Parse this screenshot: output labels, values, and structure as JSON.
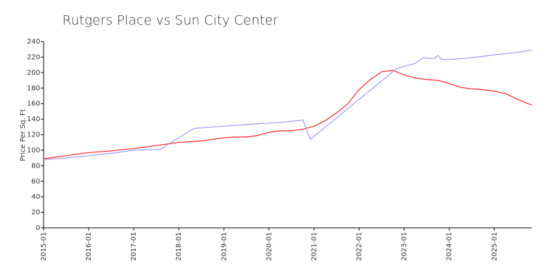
{
  "chart_data": {
    "type": "line",
    "title": "Rutgers Place vs Sun City Center",
    "ylabel": "Price Per Sq. Ft",
    "xlim": [
      "2015-01",
      "2025-11"
    ],
    "xticks": [
      "2015-01",
      "2016-01",
      "2017-01",
      "2018-01",
      "2019-01",
      "2020-01",
      "2021-01",
      "2022-01",
      "2023-01",
      "2024-01",
      "2025-01"
    ],
    "ylim": [
      0,
      240
    ],
    "yticks": [
      0,
      20,
      40,
      60,
      80,
      100,
      120,
      140,
      160,
      180,
      200,
      220,
      240
    ],
    "series": [
      {
        "color": "#ff2020",
        "x": [
          "2015-01",
          "2015-04",
          "2015-07",
          "2015-10",
          "2016-01",
          "2016-04",
          "2016-07",
          "2016-10",
          "2017-01",
          "2017-04",
          "2017-07",
          "2017-10",
          "2018-01",
          "2018-04",
          "2018-07",
          "2018-10",
          "2019-01",
          "2019-04",
          "2019-07",
          "2019-10",
          "2020-01",
          "2020-04",
          "2020-07",
          "2020-10",
          "2021-01",
          "2021-04",
          "2021-07",
          "2021-10",
          "2022-01",
          "2022-04",
          "2022-07",
          "2022-10",
          "2023-01",
          "2023-04",
          "2023-07",
          "2023-10",
          "2024-01",
          "2024-04",
          "2024-07",
          "2024-10",
          "2025-01",
          "2025-04",
          "2025-07",
          "2025-11"
        ],
        "values": [
          89,
          91,
          93,
          95,
          97,
          98,
          99,
          101,
          102,
          104,
          106,
          108,
          110,
          111,
          112,
          114,
          116,
          117,
          117,
          119,
          123,
          125,
          125,
          127,
          131,
          138,
          148,
          160,
          178,
          191,
          201,
          203,
          197,
          193,
          191,
          190,
          186,
          181,
          179,
          178,
          176,
          173,
          166,
          158
        ]
      },
      {
        "color": "#9999ff",
        "x": [
          "2015-01",
          "2015-07",
          "2016-01",
          "2016-07",
          "2017-01",
          "2017-08",
          "2018-05",
          "2018-10",
          "2019-01",
          "2019-07",
          "2020-01",
          "2020-07",
          "2020-10",
          "2020-12",
          "2022-11",
          "2023-01",
          "2023-04",
          "2023-06",
          "2023-09",
          "2023-10",
          "2023-11",
          "2024-01",
          "2024-07",
          "2025-01",
          "2025-07",
          "2025-11"
        ],
        "values": [
          88,
          90,
          93,
          96,
          100,
          101,
          128,
          130,
          131,
          133,
          135,
          137,
          139,
          114,
          205,
          208,
          212,
          219,
          218,
          222,
          217,
          217,
          219,
          223,
          226,
          229
        ]
      }
    ]
  }
}
